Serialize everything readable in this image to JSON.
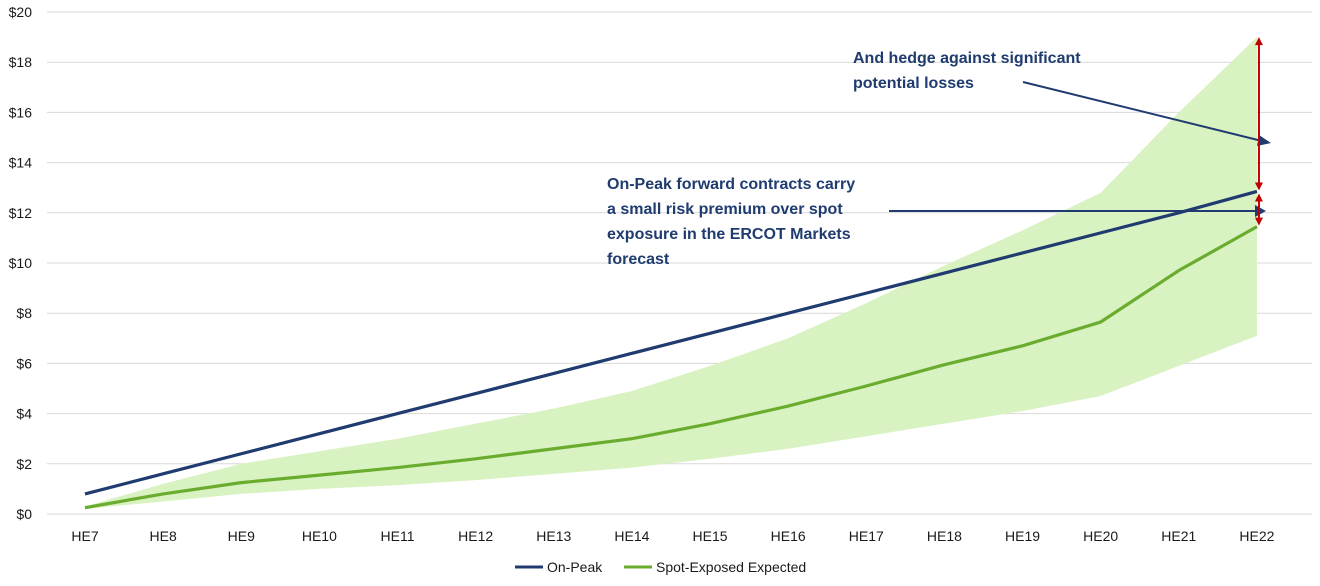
{
  "chart_data": {
    "type": "line",
    "title": "",
    "xlabel": "",
    "ylabel": "",
    "categories": [
      "HE7",
      "HE8",
      "HE9",
      "HE10",
      "HE11",
      "HE12",
      "HE13",
      "HE14",
      "HE15",
      "HE16",
      "HE17",
      "HE18",
      "HE19",
      "HE20",
      "HE21",
      "HE22"
    ],
    "ylim": [
      0,
      20
    ],
    "yticks": [
      0,
      2,
      4,
      6,
      8,
      10,
      12,
      14,
      16,
      18,
      20
    ],
    "ytick_labels": [
      "$0",
      "$2",
      "$4",
      "$6",
      "$8",
      "$10",
      "$12",
      "$14",
      "$16",
      "$18",
      "$20"
    ],
    "grid": true,
    "series": [
      {
        "name": "On-Peak",
        "color": "#1f3b6f",
        "values": [
          0.8,
          1.6,
          2.4,
          3.2,
          4.0,
          4.8,
          5.6,
          6.4,
          7.2,
          8.0,
          8.8,
          9.6,
          10.4,
          11.2,
          12.0,
          12.85
        ]
      },
      {
        "name": "Spot-Exposed Expected",
        "color": "#6aac2e",
        "values": [
          0.25,
          0.8,
          1.25,
          1.55,
          1.85,
          2.2,
          2.6,
          3.0,
          3.6,
          4.3,
          5.1,
          5.95,
          6.7,
          7.65,
          9.7,
          11.45
        ]
      }
    ],
    "band": {
      "color": "#d9f2c2",
      "upper": [
        0.3,
        1.2,
        2.0,
        2.5,
        3.0,
        3.6,
        4.2,
        4.9,
        5.9,
        7.0,
        8.4,
        9.9,
        11.3,
        12.8,
        16.0,
        19.0
      ],
      "lower": [
        0.2,
        0.5,
        0.8,
        1.0,
        1.15,
        1.35,
        1.6,
        1.85,
        2.2,
        2.6,
        3.1,
        3.6,
        4.1,
        4.7,
        5.9,
        7.1
      ]
    },
    "legend_position": "bottom-center",
    "annotations": [
      {
        "lines": [
          "And hedge against significant",
          "potential losses"
        ]
      },
      {
        "lines": [
          "On-Peak forward contracts carry",
          "a small risk premium over spot",
          "exposure in the ERCOT Markets",
          "forecast"
        ]
      }
    ],
    "annotation_arrow_color": "#1f3b6f",
    "range_arrow_color": "#c00000"
  }
}
